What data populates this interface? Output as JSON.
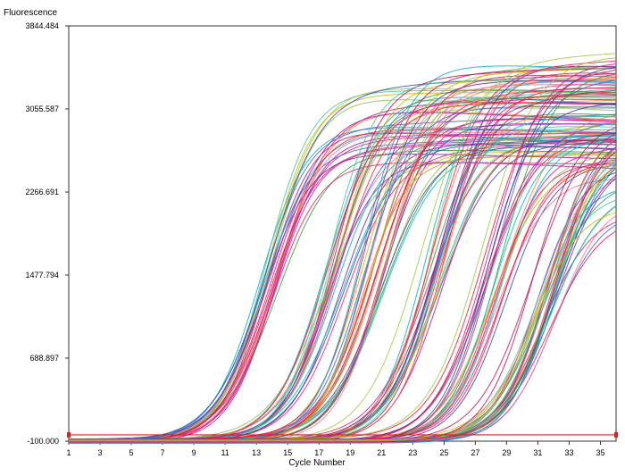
{
  "chart_data": {
    "type": "line",
    "title": "",
    "ylabel": "Fluorescence",
    "xlabel": "Cycle Number",
    "xlim": [
      1,
      36
    ],
    "ylim": [
      -100.0,
      3844.484
    ],
    "x_ticks": [
      1,
      3,
      5,
      7,
      9,
      11,
      13,
      15,
      17,
      19,
      21,
      23,
      25,
      27,
      29,
      31,
      33,
      35
    ],
    "y_ticks": [
      -100.0,
      688.897,
      1477.794,
      2266.691,
      3055.587,
      3844.484
    ],
    "y_tick_labels": [
      "-100.000",
      "688.897",
      "1477.794",
      "2266.691",
      "3055.587",
      "3844.484"
    ],
    "threshold": {
      "value": -40,
      "color": "#e02020"
    },
    "grid": false,
    "series_groups": [
      {
        "midpoint_cycle": 13.8,
        "plateau": [
          2550,
          3300
        ],
        "count": 22
      },
      {
        "midpoint_cycle": 17.9,
        "plateau": [
          2450,
          3400
        ],
        "count": 20
      },
      {
        "midpoint_cycle": 20.5,
        "plateau": [
          2500,
          3500
        ],
        "count": 24
      },
      {
        "midpoint_cycle": 24.3,
        "plateau": [
          2700,
          3620
        ],
        "count": 22
      },
      {
        "midpoint_cycle": 28.2,
        "plateau": [
          2400,
          3650
        ],
        "count": 22
      },
      {
        "midpoint_cycle": 31.4,
        "plateau": [
          2000,
          3000
        ],
        "count": 30
      }
    ],
    "colors": [
      "#e6194b",
      "#d01c8b",
      "#9b1bc2",
      "#4363d8",
      "#00b0d0",
      "#46c4a8",
      "#2e9e40",
      "#a3c93a",
      "#d4b400",
      "#f58231",
      "#ff6f91",
      "#c2185b",
      "#7b1fa2",
      "#00bcd4",
      "#8bc34a",
      "#ff1744",
      "#3949ab",
      "#e91e63"
    ]
  }
}
